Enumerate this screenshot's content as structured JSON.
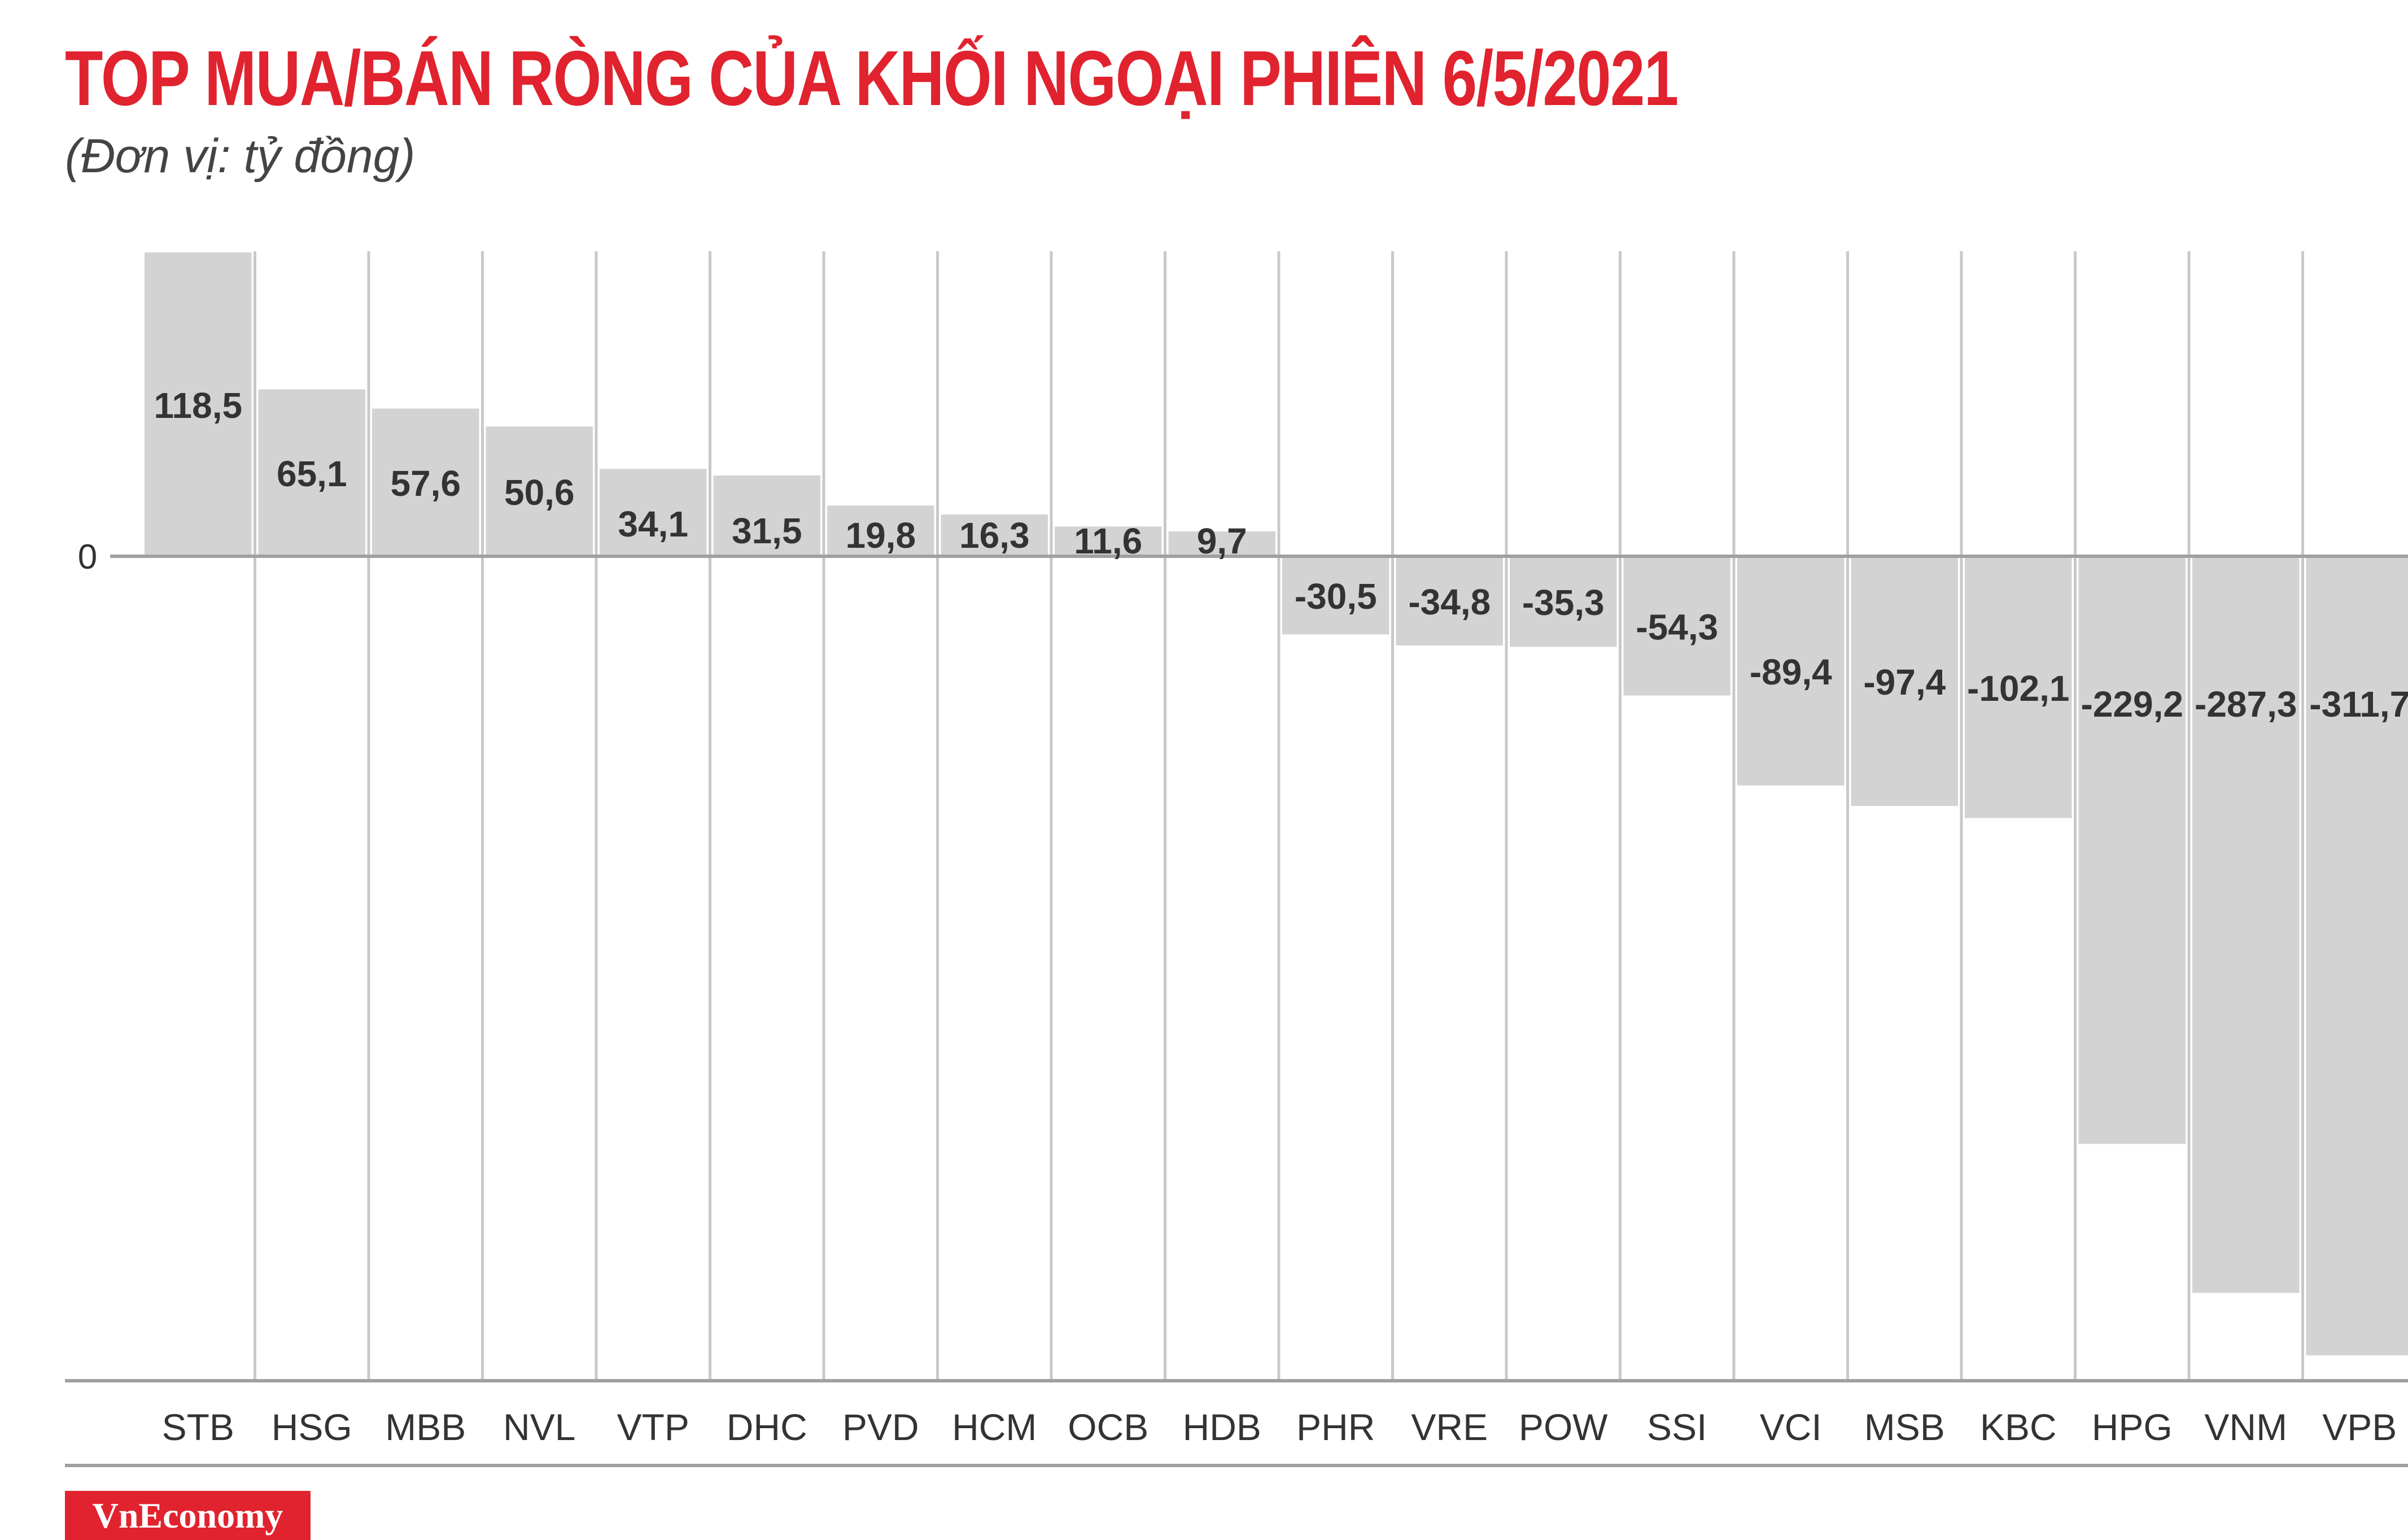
{
  "header": {
    "title": "TOP MUA/BÁN RÒNG CỦA KHỐI NGOẠI PHIÊN 6/5/2021",
    "subtitle": "(Đơn vị: tỷ đồng)"
  },
  "footer": {
    "logo_text": "VnEconomy"
  },
  "colors": {
    "title": "#e0232e",
    "bar": "#d3d3d3",
    "grid": "#c8c8c8",
    "baseline": "#a0a0a0",
    "label": "#333333"
  },
  "chart_data": {
    "type": "bar",
    "title": "TOP MUA/BÁN RÒNG CỦA KHỐI NGOẠI PHIÊN 6/5/2021",
    "subtitle": "(Đơn vị: tỷ đồng)",
    "xlabel": "",
    "ylabel": "",
    "zero_label": "0",
    "categories": [
      "STB",
      "HSG",
      "MBB",
      "NVL",
      "VTP",
      "DHC",
      "PVD",
      "HCM",
      "OCB",
      "HDB",
      "PHR",
      "VRE",
      "POW",
      "SSI",
      "VCI",
      "MSB",
      "KBC",
      "HPG",
      "VNM",
      "VPB"
    ],
    "values": [
      118.5,
      65.1,
      57.6,
      50.6,
      34.1,
      31.5,
      19.8,
      16.3,
      11.6,
      9.7,
      -30.5,
      -34.8,
      -35.3,
      -54.3,
      -89.4,
      -97.4,
      -102.1,
      -229.2,
      -287.3,
      -311.7
    ],
    "value_labels": [
      "118,5",
      "65,1",
      "57,6",
      "50,6",
      "34,1",
      "31,5",
      "19,8",
      "16,3",
      "11,6",
      "9,7",
      "-30,5",
      "-34,8",
      "-35,3",
      "-54,3",
      "-89,4",
      "-97,4",
      "-102,1",
      "-229,2",
      "-287,3",
      "-311,7"
    ],
    "ylim": [
      -320,
      120
    ],
    "grid": true,
    "legend": "none"
  }
}
